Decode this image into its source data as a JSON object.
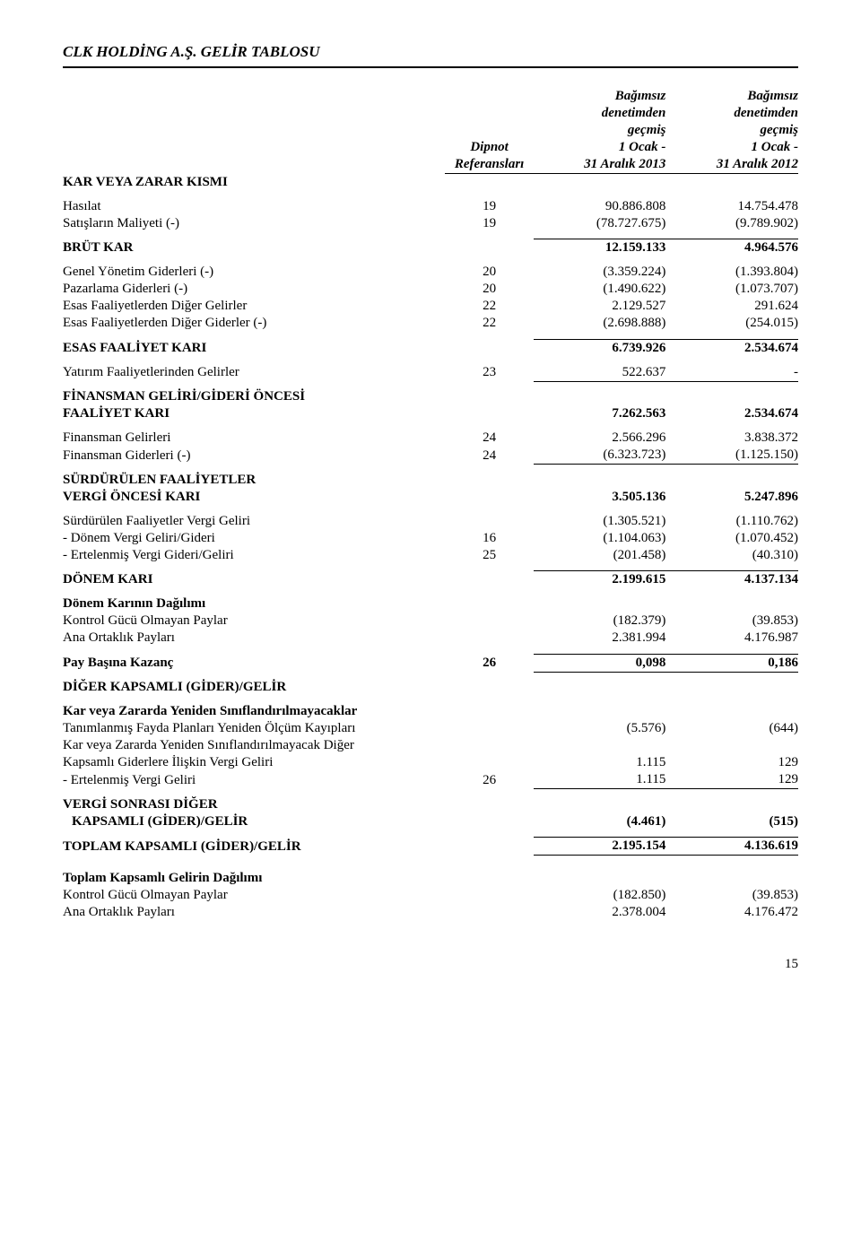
{
  "title": "CLK HOLDİNG A.Ş. GELİR TABLOSU",
  "hdr": {
    "ref1": "Dipnot",
    "ref2": "Referansları",
    "col1a": "Bağımsız",
    "col1b": "denetimden",
    "col1c": "geçmiş",
    "col1d": "1 Ocak -",
    "col1e": "31 Aralık 2013",
    "col2a": "Bağımsız",
    "col2b": "denetimden",
    "col2c": "geçmiş",
    "col2d": "1 Ocak -",
    "col2e": "31 Aralık 2012"
  },
  "sec": {
    "kar_veya_zarar": "KAR VEYA ZARAR KISMI",
    "brut_kar": "BRÜT KAR",
    "esas_faaliyet": "ESAS FAALİYET KARI",
    "finansman_oncesi1": "FİNANSMAN GELİRİ/GİDERİ ÖNCESİ",
    "finansman_oncesi2": "FAALİYET KARI",
    "surdurulen1": "SÜRDÜRÜLEN FAALİYETLER",
    "surdurulen2": "VERGİ ÖNCESİ KARI",
    "donem_kari": "DÖNEM KARI",
    "donem_dagilim": "Dönem Karının Dağılımı",
    "pay_kazanc": "Pay Başına Kazanç",
    "diger_kapsamli": "DİĞER KAPSAMLI (GİDER)/GELİR",
    "vergi_sonrasi1": "VERGİ SONRASI DİĞER",
    "vergi_sonrasi2": "KAPSAMLI (GİDER)/GELİR",
    "toplam_kapsamli": "TOPLAM KAPSAMLI (GİDER)/GELİR",
    "toplam_dagilim": "Toplam Kapsamlı Gelirin Dağılımı"
  },
  "rows": {
    "hasilat": {
      "l": "Hasılat",
      "r": "19",
      "v1": "90.886.808",
      "v2": "14.754.478"
    },
    "satis_maliyet": {
      "l": "Satışların Maliyeti  (-)",
      "r": "19",
      "v1": "(78.727.675)",
      "v2": "(9.789.902)"
    },
    "brut_kar": {
      "v1": "12.159.133",
      "v2": "4.964.576"
    },
    "genel_yonetim": {
      "l": "Genel Yönetim Giderleri (-)",
      "r": "20",
      "v1": "(3.359.224)",
      "v2": "(1.393.804)"
    },
    "pazarlama": {
      "l": "Pazarlama Giderleri (-)",
      "r": "20",
      "v1": "(1.490.622)",
      "v2": "(1.073.707)"
    },
    "esas_gelir": {
      "l": "Esas Faaliyetlerden Diğer Gelirler",
      "r": "22",
      "v1": "2.129.527",
      "v2": "291.624"
    },
    "esas_gider": {
      "l": "Esas Faaliyetlerden Diğer Giderler (-)",
      "r": "22",
      "v1": "(2.698.888)",
      "v2": "(254.015)"
    },
    "esas_kar": {
      "v1": "6.739.926",
      "v2": "2.534.674"
    },
    "yatirim_gelir": {
      "l": "Yatırım Faaliyetlerinden Gelirler",
      "r": "23",
      "v1": "522.637",
      "v2": "-"
    },
    "fin_oncesi": {
      "v1": "7.262.563",
      "v2": "2.534.674"
    },
    "fin_gelir": {
      "l": "Finansman Gelirleri",
      "r": "24",
      "v1": "2.566.296",
      "v2": "3.838.372"
    },
    "fin_gider": {
      "l": "Finansman Giderleri (-)",
      "r": "24",
      "v1": "(6.323.723)",
      "v2": "(1.125.150)"
    },
    "vergi_oncesi": {
      "v1": "3.505.136",
      "v2": "5.247.896"
    },
    "surd_vergi": {
      "l": "Sürdürülen Faaliyetler Vergi Geliri",
      "v1": "(1.305.521)",
      "v2": "(1.110.762)"
    },
    "donem_vergi": {
      "l": "- Dönem Vergi Geliri/Gideri",
      "r": "16",
      "v1": "(1.104.063)",
      "v2": "(1.070.452)"
    },
    "ertelenmis": {
      "l": "- Ertelenmiş Vergi Gideri/Geliri",
      "r": "25",
      "v1": "(201.458)",
      "v2": "(40.310)"
    },
    "donem_kari": {
      "v1": "2.199.615",
      "v2": "4.137.134"
    },
    "kontrol_gucu": {
      "l": "Kontrol Gücü Olmayan Paylar",
      "v1": "(182.379)",
      "v2": "(39.853)"
    },
    "ana_ortaklik": {
      "l": "Ana Ortaklık Payları",
      "v1": "2.381.994",
      "v2": "4.176.987"
    },
    "pay_kazanc": {
      "r": "26",
      "v1": "0,098",
      "v2": "0,186"
    },
    "kar_zarar_sinif": {
      "l": "Kar veya Zararda Yeniden Sınıflandırılmayacaklar"
    },
    "tanimlanmis": {
      "l": "Tanımlanmış Fayda Planları Yeniden Ölçüm Kayıpları",
      "v1": "(5.576)",
      "v2": "(644)"
    },
    "kar_zarar_diger": {
      "l": "Kar veya Zararda Yeniden Sınıflandırılmayacak Diğer"
    },
    "kapsamli_gider": {
      "l": "Kapsamlı Giderlere İlişkin Vergi Geliri",
      "v1": "1.115",
      "v2": "129"
    },
    "ertelenmis_vg": {
      "l": " - Ertelenmiş Vergi Geliri",
      "r": "26",
      "v1": "1.115",
      "v2": "129"
    },
    "vergi_sonrasi": {
      "v1": "(4.461)",
      "v2": "(515)"
    },
    "toplam_kapsamli": {
      "v1": "2.195.154",
      "v2": "4.136.619"
    },
    "tk_kontrol": {
      "l": "Kontrol Gücü Olmayan Paylar",
      "v1": "(182.850)",
      "v2": "(39.853)"
    },
    "tk_ana": {
      "l": "Ana Ortaklık Payları",
      "v1": "2.378.004",
      "v2": "4.176.472"
    }
  },
  "pagenum": "15"
}
